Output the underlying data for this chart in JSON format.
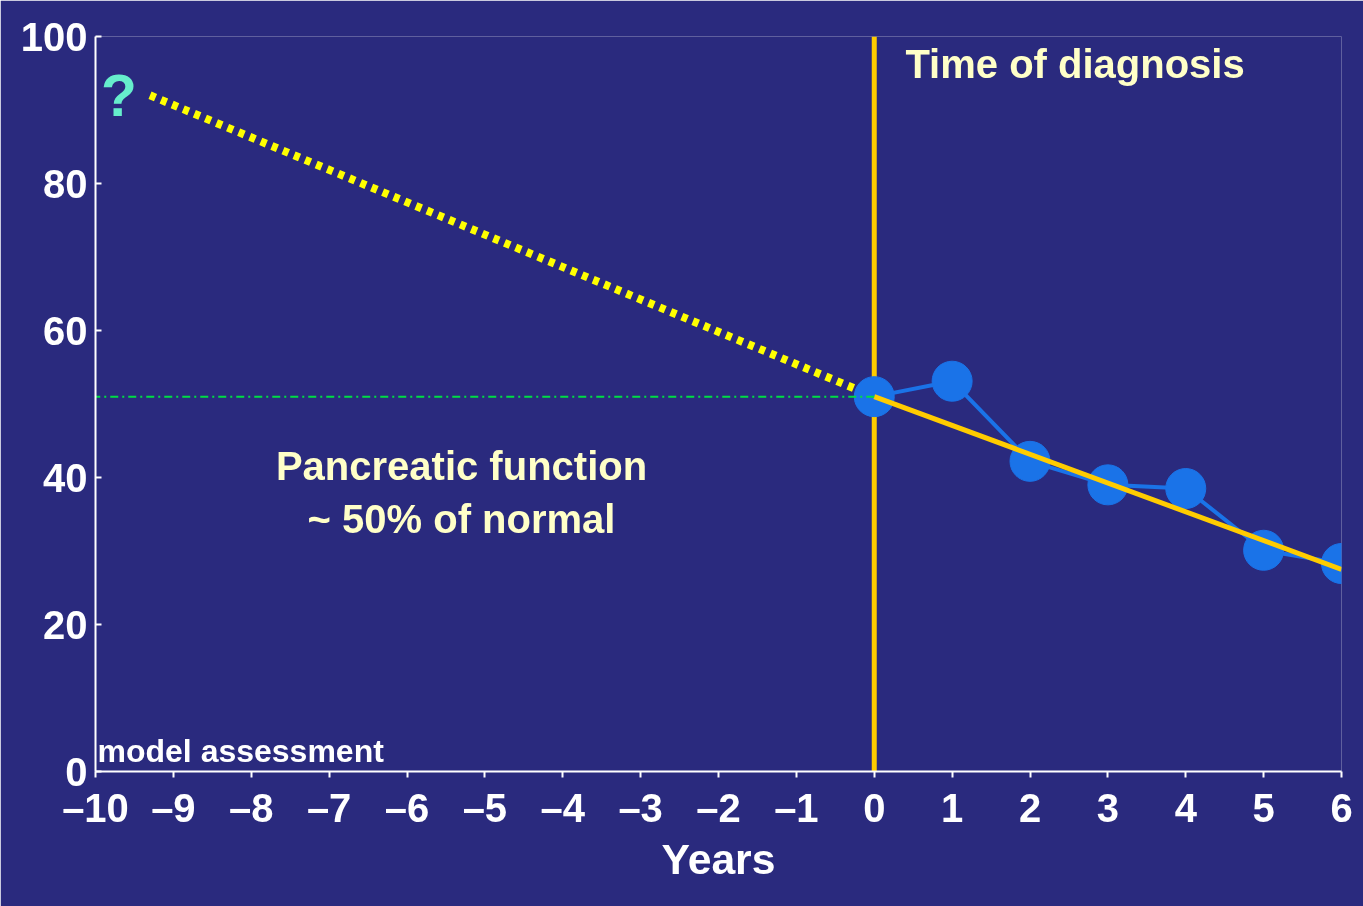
{
  "chart_data": {
    "type": "line",
    "xlabel": "Years",
    "xlim": [
      -10,
      6
    ],
    "ylim": [
      0,
      100
    ],
    "xticks": [
      {
        "value": -10,
        "label": "–10"
      },
      {
        "value": -9,
        "label": "–9"
      },
      {
        "value": -8,
        "label": "–8"
      },
      {
        "value": -7,
        "label": "–7"
      },
      {
        "value": -6,
        "label": "–6"
      },
      {
        "value": -5,
        "label": "–5"
      },
      {
        "value": -4,
        "label": "–4"
      },
      {
        "value": -3,
        "label": "–3"
      },
      {
        "value": -2,
        "label": "–2"
      },
      {
        "value": -1,
        "label": "–1"
      },
      0,
      1,
      2,
      3,
      4,
      5,
      6
    ],
    "yticks": [
      0,
      20,
      40,
      60,
      80,
      100
    ],
    "grid": false,
    "series": [
      {
        "color": "#ffff00",
        "line_style": "dotted",
        "marker": "none",
        "x": [
          -9.3,
          0
        ],
        "values": [
          92,
          51
        ]
      },
      {
        "color": "#00dd44",
        "line_style": "dashed",
        "marker": "none",
        "x": [
          0,
          -10
        ],
        "values": [
          51,
          51
        ]
      },
      {
        "color": "#1a73e8",
        "line_style": "solid",
        "marker": "circle",
        "x": [
          0,
          1,
          2,
          3,
          4,
          5,
          6
        ],
        "values": [
          51,
          53.1,
          42.2,
          39,
          38.5,
          30.1,
          28.3
        ]
      },
      {
        "color": "#ffcc00",
        "line_style": "solid",
        "marker": "none",
        "x": [
          0,
          6
        ],
        "values": [
          51,
          27.5
        ]
      }
    ],
    "ref_lines": [
      {
        "axis": "x",
        "value": 0,
        "label": "Time of diagnosis",
        "color": "#ffcc00"
      }
    ],
    "annotations": [
      "?",
      "Pancreatic function\n~ 50% of normal",
      "model assessment"
    ]
  }
}
